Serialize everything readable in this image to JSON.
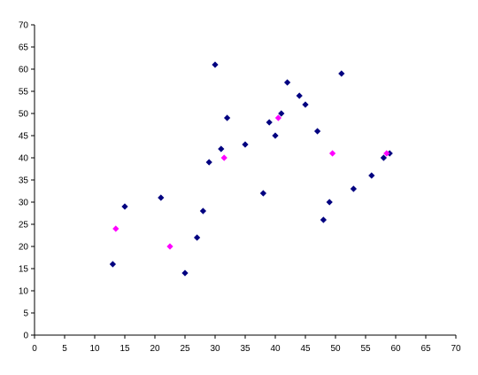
{
  "chart_data": {
    "type": "scatter",
    "title": "",
    "xlabel": "",
    "ylabel": "",
    "xlim": [
      0,
      70
    ],
    "ylim": [
      0,
      70
    ],
    "xticks": [
      0,
      5,
      10,
      15,
      20,
      25,
      30,
      35,
      40,
      45,
      50,
      55,
      60,
      65,
      70
    ],
    "yticks": [
      0,
      5,
      10,
      15,
      20,
      25,
      30,
      35,
      40,
      45,
      50,
      55,
      60,
      65,
      70
    ],
    "grid": false,
    "legend": "none",
    "series": [
      {
        "color": "#000080",
        "marker": "diamond",
        "points": [
          [
            13,
            16
          ],
          [
            15,
            29
          ],
          [
            21,
            31
          ],
          [
            25,
            14
          ],
          [
            27,
            22
          ],
          [
            28,
            28
          ],
          [
            29,
            39
          ],
          [
            30,
            61
          ],
          [
            31,
            42
          ],
          [
            32,
            49
          ],
          [
            35,
            43
          ],
          [
            38,
            32
          ],
          [
            39,
            48
          ],
          [
            40,
            45
          ],
          [
            41,
            50
          ],
          [
            42,
            57
          ],
          [
            44,
            54
          ],
          [
            45,
            52
          ],
          [
            47,
            46
          ],
          [
            48,
            26
          ],
          [
            49,
            30
          ],
          [
            51,
            59
          ],
          [
            53,
            33
          ],
          [
            56,
            36
          ],
          [
            58,
            40
          ],
          [
            59,
            41
          ]
        ]
      },
      {
        "color": "#FF00FF",
        "marker": "diamond",
        "points": [
          [
            13.5,
            24
          ],
          [
            22.5,
            20
          ],
          [
            31.5,
            40
          ],
          [
            40.5,
            49
          ],
          [
            49.5,
            41
          ],
          [
            58.5,
            41
          ]
        ]
      }
    ]
  }
}
